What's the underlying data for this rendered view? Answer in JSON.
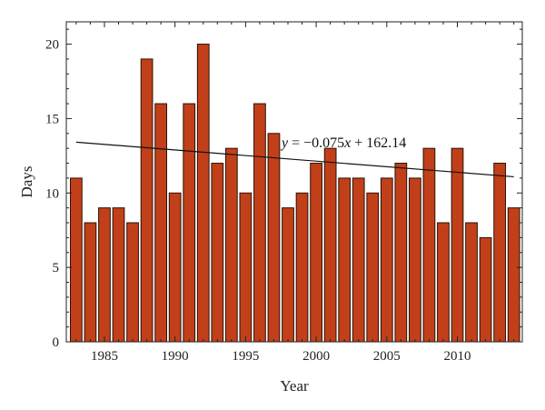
{
  "chart_data": {
    "type": "bar",
    "x": [
      1983,
      1984,
      1985,
      1986,
      1987,
      1988,
      1989,
      1990,
      1991,
      1992,
      1993,
      1994,
      1995,
      1996,
      1997,
      1998,
      1999,
      2000,
      2001,
      2002,
      2003,
      2004,
      2005,
      2006,
      2007,
      2008,
      2009,
      2010,
      2011,
      2012,
      2013,
      2014
    ],
    "values": [
      11,
      8,
      9,
      9,
      8,
      19,
      16,
      10,
      16,
      20,
      12,
      13,
      10,
      16,
      14,
      9,
      10,
      12,
      13,
      11,
      11,
      10,
      11,
      12,
      11,
      13,
      8,
      13,
      8,
      7,
      12,
      9
    ],
    "xlabel": "Year",
    "ylabel": "Days",
    "xlim": [
      1982.3,
      2014.6
    ],
    "ylim": [
      0,
      21.5
    ],
    "x_ticks": [
      1985,
      1990,
      1995,
      2000,
      2005,
      2010
    ],
    "y_ticks": [
      0,
      5,
      10,
      15,
      20
    ],
    "bar_color": "#c1401a",
    "trendline": {
      "slope": -0.075,
      "intercept": 162.14,
      "x_start": 1983,
      "x_end": 2014,
      "equation": {
        "y": "y",
        "eq_sign": " = ",
        "coef": "−0.075",
        "x": "x",
        "rest": " + 162.14"
      }
    },
    "grid": false
  }
}
